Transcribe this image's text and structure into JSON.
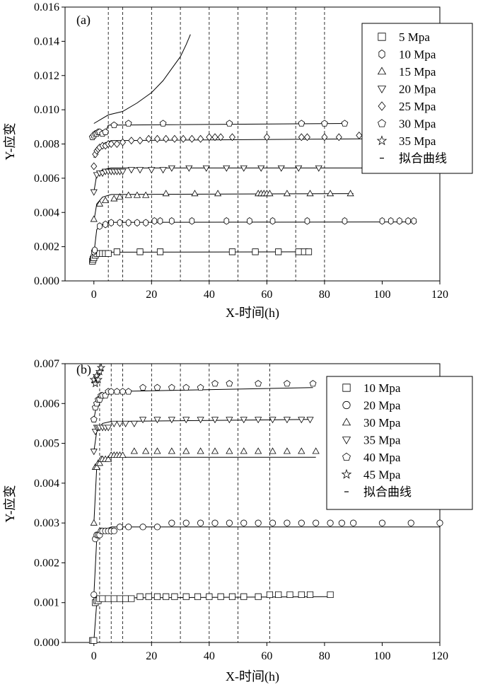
{
  "chart_data": [
    {
      "type": "scatter",
      "panel_label": "(a)",
      "xlabel": "X-时间(h)",
      "ylabel": "Y-应变",
      "xlim": [
        -10,
        120
      ],
      "ylim": [
        0,
        0.016
      ],
      "x_ticks": [
        "0",
        "20",
        "40",
        "60",
        "80",
        "100",
        "120"
      ],
      "y_ticks": [
        "0.000",
        "0.002",
        "0.004",
        "0.006",
        "0.008",
        "0.010",
        "0.012",
        "0.014",
        "0.016"
      ],
      "dashed_verticals": [
        5,
        10,
        20,
        30,
        40,
        50,
        60,
        70,
        80
      ],
      "legend_position": "top-right",
      "legend": [
        {
          "label": "5 Mpa",
          "marker": "square"
        },
        {
          "label": "10 Mpa",
          "marker": "hexagon-tall"
        },
        {
          "label": "15 Mpa",
          "marker": "triangle-up"
        },
        {
          "label": "20 Mpa",
          "marker": "triangle-down"
        },
        {
          "label": "25 Mpa",
          "marker": "diamond"
        },
        {
          "label": "30 Mpa",
          "marker": "pentagon"
        },
        {
          "label": "35 Mpa",
          "marker": "star"
        },
        {
          "label": "拟合曲线",
          "marker": "dash"
        }
      ],
      "series": [
        {
          "name": "5 Mpa",
          "marker": "square",
          "x": [
            -0.5,
            -0.3,
            0,
            0.5,
            1,
            2,
            3,
            4,
            5,
            8,
            16,
            23,
            48,
            56,
            64,
            71,
            73,
            74.5
          ],
          "y": [
            0.00115,
            0.00125,
            0.00135,
            0.0015,
            0.0016,
            0.0016,
            0.0016,
            0.0016,
            0.0016,
            0.0017,
            0.0017,
            0.0017,
            0.0017,
            0.0017,
            0.0017,
            0.0017,
            0.0017,
            0.0017
          ],
          "fit_x": [
            0,
            1,
            2,
            5,
            75
          ],
          "fit_y": [
            0.0012,
            0.0016,
            0.00165,
            0.00168,
            0.0017
          ]
        },
        {
          "name": "10 Mpa",
          "marker": "hexagon-tall",
          "x": [
            0,
            0.3,
            2,
            4,
            6,
            9,
            12,
            15,
            18,
            21,
            23,
            27,
            34,
            46,
            54,
            62,
            74,
            87,
            100,
            103,
            106,
            109,
            111
          ],
          "y": [
            0.0017,
            0.0018,
            0.0032,
            0.0033,
            0.0034,
            0.0034,
            0.0034,
            0.0034,
            0.0034,
            0.0035,
            0.0035,
            0.0035,
            0.0035,
            0.0035,
            0.0035,
            0.0035,
            0.0035,
            0.0035,
            0.0035,
            0.0035,
            0.0035,
            0.0035,
            0.0035
          ],
          "fit_x": [
            0,
            1,
            3,
            6,
            112
          ],
          "fit_y": [
            0.0016,
            0.003,
            0.0033,
            0.00342,
            0.00345
          ]
        },
        {
          "name": "15 Mpa",
          "marker": "triangle-up",
          "x": [
            0,
            2,
            4,
            7,
            9,
            12,
            15,
            18,
            25,
            35,
            43,
            57,
            58,
            59,
            60,
            61,
            67,
            75,
            82,
            89
          ],
          "y": [
            0.0036,
            0.0045,
            0.0047,
            0.0048,
            0.0049,
            0.005,
            0.005,
            0.005,
            0.0051,
            0.0051,
            0.0051,
            0.0051,
            0.0051,
            0.0051,
            0.0051,
            0.0051,
            0.0051,
            0.0051,
            0.0051,
            0.0051
          ],
          "fit_x": [
            0,
            1,
            3,
            6,
            90
          ],
          "fit_y": [
            0.0035,
            0.0045,
            0.0049,
            0.00505,
            0.0051
          ]
        },
        {
          "name": "20 Mpa",
          "marker": "triangle-down",
          "x": [
            0,
            1,
            2,
            3,
            4,
            5,
            6,
            7,
            8,
            9,
            10,
            13,
            16,
            20,
            24,
            27,
            33,
            39,
            46,
            52,
            58,
            65,
            71,
            78
          ],
          "y": [
            0.0052,
            0.0062,
            0.0063,
            0.0063,
            0.0064,
            0.0064,
            0.0064,
            0.0064,
            0.0064,
            0.0064,
            0.0064,
            0.0065,
            0.0065,
            0.0065,
            0.0065,
            0.0066,
            0.0066,
            0.0066,
            0.0066,
            0.0066,
            0.0066,
            0.0066,
            0.0066,
            0.0066
          ],
          "fit_x": [
            0,
            1,
            3,
            6,
            112
          ],
          "fit_y": [
            0.0052,
            0.0062,
            0.0065,
            0.0066,
            0.0066
          ]
        },
        {
          "name": "25 Mpa",
          "marker": "diamond",
          "x": [
            0,
            0.5,
            1,
            1.5,
            2,
            3,
            4,
            5,
            6,
            8,
            10,
            13,
            16,
            19,
            22,
            25,
            28,
            31,
            34,
            37,
            40,
            42,
            44,
            48,
            60,
            72,
            74,
            80,
            85,
            92
          ],
          "y": [
            0.0067,
            0.0074,
            0.0076,
            0.0077,
            0.0078,
            0.0079,
            0.0079,
            0.008,
            0.008,
            0.008,
            0.0081,
            0.0082,
            0.0082,
            0.0083,
            0.0083,
            0.0083,
            0.0083,
            0.0083,
            0.0083,
            0.0083,
            0.0084,
            0.0084,
            0.0084,
            0.0084,
            0.0084,
            0.0084,
            0.0084,
            0.0084,
            0.0084,
            0.0085
          ],
          "fit_x": [
            0,
            1,
            3,
            6,
            93
          ],
          "fit_y": [
            0.0072,
            0.0078,
            0.008,
            0.0082,
            0.0083
          ]
        },
        {
          "name": "30 Mpa",
          "marker": "pentagon",
          "x": [
            -0.5,
            0,
            0.5,
            1,
            1.5,
            2,
            3,
            4,
            7,
            12,
            24,
            47,
            72,
            80,
            87
          ],
          "y": [
            0.0084,
            0.0085,
            0.0086,
            0.0086,
            0.0087,
            0.0087,
            0.0086,
            0.0087,
            0.0091,
            0.0092,
            0.0092,
            0.0092,
            0.0092,
            0.0092,
            0.0092
          ],
          "fit_x": [
            0,
            2,
            4,
            5,
            88
          ],
          "fit_y": [
            0.0085,
            0.0086,
            0.0087,
            0.0091,
            0.0092
          ]
        },
        {
          "name": "35 Mpa",
          "marker": "none",
          "x": [],
          "y": [],
          "fit_x": [
            0,
            5,
            10,
            15,
            20,
            24,
            27,
            30,
            32,
            33.5
          ],
          "fit_y": [
            0.0092,
            0.0097,
            0.0099,
            0.0104,
            0.011,
            0.0117,
            0.0124,
            0.0131,
            0.0138,
            0.0144
          ]
        }
      ]
    },
    {
      "type": "scatter",
      "panel_label": "(b)",
      "xlabel": "X-时间(h)",
      "ylabel": "Y-应变",
      "xlim": [
        -10,
        120
      ],
      "ylim": [
        0,
        0.007
      ],
      "x_ticks": [
        "0",
        "20",
        "40",
        "60",
        "80",
        "100",
        "120"
      ],
      "y_ticks": [
        "0.000",
        "0.001",
        "0.002",
        "0.003",
        "0.004",
        "0.005",
        "0.006",
        "0.007"
      ],
      "dashed_verticals": [
        2,
        6,
        10,
        20,
        30,
        40,
        50,
        61
      ],
      "legend_position": "top-right",
      "legend": [
        {
          "label": "10 Mpa",
          "marker": "square"
        },
        {
          "label": "20 Mpa",
          "marker": "circle"
        },
        {
          "label": "30 Mpa",
          "marker": "triangle-up"
        },
        {
          "label": "35 Mpa",
          "marker": "triangle-down"
        },
        {
          "label": "40 Mpa",
          "marker": "pentagon"
        },
        {
          "label": "45 Mpa",
          "marker": "star"
        },
        {
          "label": "拟合曲线",
          "marker": "dash"
        }
      ],
      "series": [
        {
          "name": "10 Mpa",
          "marker": "square",
          "x": [
            -0.5,
            0,
            0.5,
            1,
            1.5,
            2,
            3,
            5,
            7,
            9,
            11,
            13,
            16,
            19,
            22,
            25,
            28,
            32,
            36,
            40,
            44,
            48,
            52,
            57,
            61,
            64,
            68,
            72,
            75,
            82
          ],
          "y": [
            5e-05,
            5e-05,
            0.001,
            0.00105,
            0.00105,
            0.0011,
            0.0011,
            0.0011,
            0.0011,
            0.0011,
            0.0011,
            0.0011,
            0.00115,
            0.00115,
            0.00115,
            0.00115,
            0.00115,
            0.00115,
            0.00115,
            0.00115,
            0.00115,
            0.00115,
            0.00115,
            0.00115,
            0.0012,
            0.0012,
            0.0012,
            0.0012,
            0.0012,
            0.0012
          ],
          "fit_x": [
            0,
            1,
            2,
            5,
            82
          ],
          "fit_y": [
            5e-05,
            0.001,
            0.00105,
            0.00112,
            0.00115
          ]
        },
        {
          "name": "20 Mpa",
          "marker": "circle",
          "x": [
            0,
            0.5,
            1,
            1.5,
            2,
            2.5,
            3,
            4,
            5,
            6,
            7,
            9,
            12,
            17,
            22,
            27,
            32,
            37,
            42,
            47,
            52,
            57,
            62,
            67,
            72,
            77,
            82,
            86,
            90,
            100,
            110,
            120
          ],
          "y": [
            0.0012,
            0.0026,
            0.0027,
            0.0027,
            0.0027,
            0.0028,
            0.0028,
            0.0028,
            0.0028,
            0.0028,
            0.0028,
            0.0029,
            0.0029,
            0.0029,
            0.0029,
            0.003,
            0.003,
            0.003,
            0.003,
            0.003,
            0.003,
            0.003,
            0.003,
            0.003,
            0.003,
            0.003,
            0.003,
            0.003,
            0.003,
            0.003,
            0.003,
            0.003
          ],
          "fit_x": [
            0,
            1,
            3,
            6,
            120
          ],
          "fit_y": [
            0.0012,
            0.0026,
            0.0028,
            0.0029,
            0.0029
          ]
        },
        {
          "name": "30 Mpa",
          "marker": "triangle-up",
          "x": [
            0,
            0.5,
            1,
            1.5,
            2,
            2.5,
            3,
            4,
            5,
            6,
            7,
            8,
            9,
            10,
            14,
            18,
            22,
            27,
            32,
            37,
            42,
            47,
            52,
            57,
            62,
            67,
            72,
            77
          ],
          "y": [
            0.003,
            0.0044,
            0.0044,
            0.0045,
            0.0045,
            0.0046,
            0.0046,
            0.0046,
            0.0046,
            0.0047,
            0.0047,
            0.0047,
            0.0047,
            0.0047,
            0.0048,
            0.0048,
            0.0048,
            0.0048,
            0.0048,
            0.0048,
            0.0048,
            0.0048,
            0.0048,
            0.0048,
            0.0048,
            0.0048,
            0.0048,
            0.0048
          ],
          "fit_x": [
            0,
            1,
            3,
            6,
            77
          ],
          "fit_y": [
            0.003,
            0.0044,
            0.0046,
            0.00465,
            0.00465
          ]
        },
        {
          "name": "35 Mpa",
          "marker": "triangle-down",
          "x": [
            0,
            0.5,
            1,
            1.5,
            2,
            3,
            4,
            5,
            7,
            9,
            11,
            14,
            17,
            22,
            27,
            32,
            37,
            42,
            47,
            52,
            57,
            62,
            67,
            72,
            75
          ],
          "y": [
            0.0048,
            0.0053,
            0.0054,
            0.0054,
            0.0054,
            0.0054,
            0.0054,
            0.0054,
            0.0055,
            0.0055,
            0.0055,
            0.0055,
            0.0056,
            0.0056,
            0.0056,
            0.0056,
            0.0056,
            0.0056,
            0.0056,
            0.0056,
            0.0056,
            0.0056,
            0.0056,
            0.0056,
            0.0056
          ],
          "fit_x": [
            0,
            1,
            3,
            6,
            75
          ],
          "fit_y": [
            0.0048,
            0.0053,
            0.0055,
            0.00555,
            0.0056
          ]
        },
        {
          "name": "40 Mpa",
          "marker": "pentagon",
          "x": [
            0,
            0.5,
            1,
            1.5,
            2,
            2.5,
            3,
            4,
            5,
            6,
            8,
            10,
            12,
            17,
            22,
            27,
            32,
            37,
            42,
            47,
            57,
            67,
            76
          ],
          "y": [
            0.0056,
            0.0059,
            0.006,
            0.0061,
            0.0061,
            0.0062,
            0.0062,
            0.0062,
            0.0063,
            0.0063,
            0.0063,
            0.0063,
            0.0063,
            0.0064,
            0.0064,
            0.0064,
            0.0064,
            0.0064,
            0.0065,
            0.0065,
            0.0065,
            0.0065,
            0.0065
          ],
          "fit_x": [
            0,
            1,
            3,
            6,
            76
          ],
          "fit_y": [
            0.0056,
            0.006,
            0.0062,
            0.0063,
            0.0064
          ]
        },
        {
          "name": "45 Mpa",
          "marker": "star",
          "x": [
            0,
            0.5,
            1,
            1.5,
            2,
            2.5
          ],
          "y": [
            0.0066,
            0.0065,
            0.0067,
            0.0066,
            0.0068,
            0.0069
          ],
          "fit_x": [
            0,
            1,
            2,
            2.5
          ],
          "fit_y": [
            0.0065,
            0.0066,
            0.0068,
            0.0069
          ]
        }
      ]
    }
  ]
}
